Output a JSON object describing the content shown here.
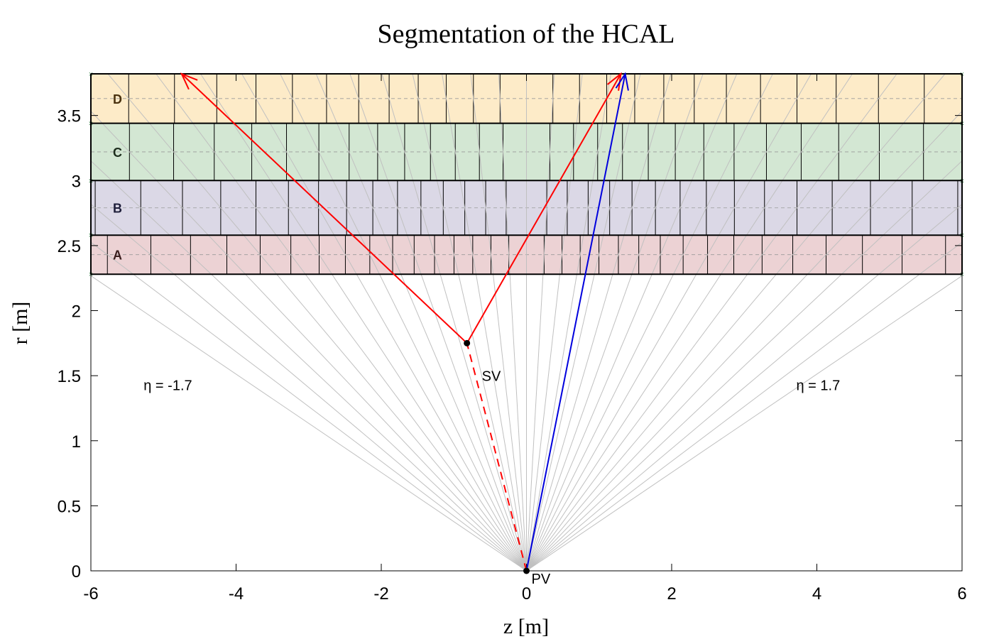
{
  "chart_data": {
    "type": "diagram",
    "title": "Segmentation of the HCAL",
    "xlabel": "z [m]",
    "ylabel": "r [m]",
    "xlim": [
      -6,
      6
    ],
    "ylim": [
      0,
      3.82
    ],
    "xticks": [
      -6,
      -4,
      -2,
      0,
      2,
      4,
      6
    ],
    "yticks": [
      0,
      0.5,
      1,
      1.5,
      2,
      2.5,
      3,
      3.5
    ],
    "colors": {
      "layer_A": "#ecd2d4",
      "layer_B": "#dbd8e6",
      "layer_C": "#d3e7d3",
      "layer_D": "#fdebc8",
      "eta_lines": "#c0c0c0",
      "secondary_tracks": "#ff0000",
      "primary_track": "#0000dd",
      "vertex": "#000000"
    },
    "eta_lines": {
      "eta_min": -1.7,
      "eta_max": 1.7,
      "step": 0.1,
      "origin": [
        0,
        0
      ]
    },
    "layers": [
      {
        "label": "A",
        "r_min": 2.28,
        "r_max": 2.58,
        "color": "#ecd2d4",
        "text_color": "#3a1e1e"
      },
      {
        "label": "B",
        "r_min": 2.58,
        "r_max": 3.0,
        "color": "#dbd8e6",
        "text_color": "#1e1e3a"
      },
      {
        "label": "C",
        "r_min": 3.0,
        "r_max": 3.44,
        "color": "#d3e7d3",
        "text_color": "#1e2e1e"
      },
      {
        "label": "D",
        "r_min": 3.44,
        "r_max": 3.82,
        "color": "#fdebc8",
        "text_color": "#4a3210"
      }
    ],
    "vertices": [
      {
        "label": "PV",
        "z": 0.0,
        "r": 0.0
      },
      {
        "label": "SV",
        "z": -0.82,
        "r": 1.75
      }
    ],
    "tracks": [
      {
        "from": [
          0.0,
          0.0
        ],
        "to": [
          -0.82,
          1.75
        ],
        "style": "dashed",
        "color": "#ff0000",
        "arrow": false
      },
      {
        "from": [
          -0.82,
          1.75
        ],
        "to": [
          -4.75,
          3.82
        ],
        "style": "solid",
        "color": "#ff0000",
        "arrow": true
      },
      {
        "from": [
          -0.82,
          1.75
        ],
        "to": [
          1.3,
          3.82
        ],
        "style": "solid",
        "color": "#ff0000",
        "arrow": true
      },
      {
        "from": [
          0.0,
          0.0
        ],
        "to": [
          1.36,
          3.82
        ],
        "style": "solid",
        "color": "#0000dd",
        "arrow": true
      }
    ],
    "annotations": [
      {
        "text": "η = -1.7",
        "z": -5.0,
        "r": 1.39
      },
      {
        "text": "η = 1.7",
        "z": 3.99,
        "r": 1.39
      }
    ]
  }
}
